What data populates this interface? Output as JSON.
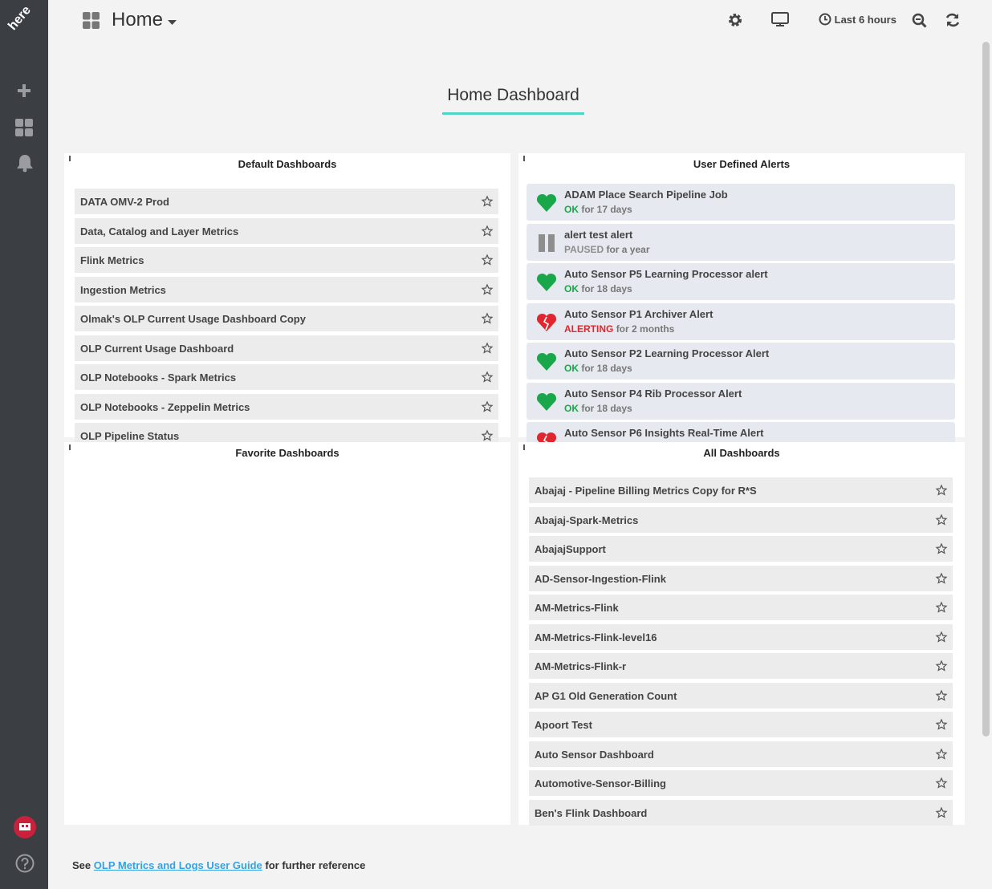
{
  "sidebar": {
    "logo": "here"
  },
  "topbar": {
    "title": "Home",
    "time_range": "Last 6 hours"
  },
  "page_title": "Home Dashboard",
  "panels": {
    "default_dashboards": {
      "title": "Default Dashboards",
      "items": [
        "DATA OMV-2 Prod",
        "Data, Catalog and Layer Metrics",
        "Flink Metrics",
        "Ingestion Metrics",
        "Olmak's OLP Current Usage Dashboard Copy",
        "OLP Current Usage Dashboard",
        "OLP Notebooks - Spark Metrics",
        "OLP Notebooks - Zeppelin Metrics",
        "OLP Pipeline Status"
      ]
    },
    "user_alerts": {
      "title": "User Defined Alerts",
      "items": [
        {
          "name": "ADAM Place Search Pipeline Job",
          "state": "OK",
          "duration": "for 17 days",
          "icon": "heart",
          "color": "#1aa64a"
        },
        {
          "name": "alert test alert",
          "state": "PAUSED",
          "duration": "for a year",
          "icon": "pause",
          "color": "#8e8e8e"
        },
        {
          "name": "Auto Sensor P5 Learning Processor alert",
          "state": "OK",
          "duration": "for 18 days",
          "icon": "heart",
          "color": "#1aa64a"
        },
        {
          "name": "Auto Sensor P1 Archiver Alert",
          "state": "ALERTING",
          "duration": "for 2 months",
          "icon": "broken-heart",
          "color": "#e0262e"
        },
        {
          "name": "Auto Sensor P2 Learning Processor Alert",
          "state": "OK",
          "duration": "for 18 days",
          "icon": "heart",
          "color": "#1aa64a"
        },
        {
          "name": "Auto Sensor P4 Rib Processor Alert",
          "state": "OK",
          "duration": "for 18 days",
          "icon": "heart",
          "color": "#1aa64a"
        },
        {
          "name": "Auto Sensor P6 Insights Real-Time Alert",
          "icon": "broken-heart",
          "color": "#e0262e"
        }
      ]
    },
    "favorite_dashboards": {
      "title": "Favorite Dashboards"
    },
    "all_dashboards": {
      "title": "All Dashboards",
      "items": [
        "Abajaj - Pipeline Billing Metrics Copy for R*S",
        "Abajaj-Spark-Metrics",
        "AbajajSupport",
        "AD-Sensor-Ingestion-Flink",
        "AM-Metrics-Flink",
        "AM-Metrics-Flink-level16",
        "AM-Metrics-Flink-r",
        "AP G1 Old Generation Count",
        "Apoort Test",
        "Auto Sensor Dashboard",
        "Automotive-Sensor-Billing",
        "Ben's Flink Dashboard"
      ]
    }
  },
  "footer": {
    "prefix": "See",
    "link": "OLP Metrics and Logs User Guide",
    "suffix": "for further reference"
  }
}
